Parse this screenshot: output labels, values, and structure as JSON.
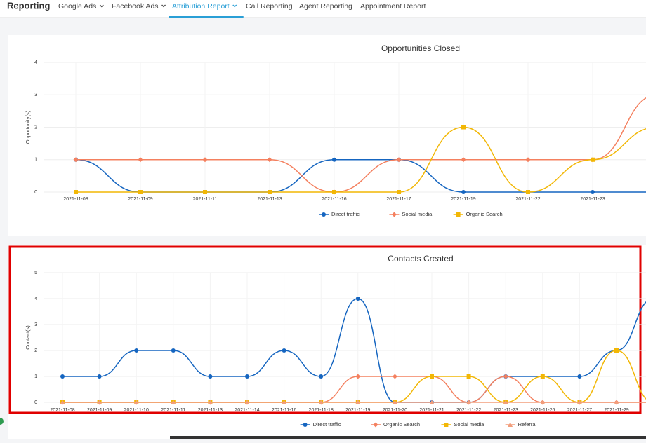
{
  "nav": {
    "brand": "Reporting",
    "tabs": [
      "Google Ads",
      "Facebook Ads",
      "Attribution Report",
      "Call Reporting",
      "Agent Reporting",
      "Appointment Report"
    ],
    "active": 2
  },
  "chart_data": [
    {
      "type": "line",
      "title": "Opportunities Closed",
      "y_label": "Opportunity(s)",
      "categories": [
        "2021-11-08",
        "2021-11-09",
        "2021-11-11",
        "2021-11-13",
        "2021-11-16",
        "2021-11-17",
        "2021-11-19",
        "2021-11-22",
        "2021-11-23",
        null
      ],
      "series": [
        {
          "name": "Direct traffic",
          "color": "#1565c0",
          "marker": "circle",
          "values": [
            1,
            0,
            0,
            0,
            1,
            1,
            0,
            0,
            0,
            0
          ]
        },
        {
          "name": "Social media",
          "color": "#f4805f",
          "marker": "diamond",
          "values": [
            1,
            1,
            1,
            1,
            0,
            1,
            1,
            1,
            1,
            3
          ]
        },
        {
          "name": "Organic Search",
          "color": "#f2b705",
          "marker": "square",
          "values": [
            0,
            0,
            0,
            0,
            0,
            0,
            2,
            0,
            1,
            2
          ]
        }
      ],
      "ylim": [
        0,
        4
      ],
      "yticks": [
        0,
        1,
        2,
        3,
        4
      ],
      "grid": true
    },
    {
      "type": "line",
      "title": "Contacts Created",
      "y_label": "Contact(s)",
      "categories": [
        "2021-11-08",
        "2021-11-09",
        "2021-11-10",
        "2021-11-11",
        "2021-11-13",
        "2021-11-14",
        "2021-11-16",
        "2021-11-18",
        "2021-11-19",
        "2021-11-20",
        "2021-11-21",
        "2021-11-22",
        "2021-11-23",
        "2021-11-26",
        "2021-11-27",
        "2021-11-29",
        null
      ],
      "series": [
        {
          "name": "Direct traffic",
          "color": "#1565c0",
          "marker": "circle",
          "values": [
            1,
            1,
            2,
            2,
            1,
            1,
            2,
            1,
            4,
            0,
            0,
            0,
            1,
            1,
            1,
            2,
            4
          ]
        },
        {
          "name": "Organic Search",
          "color": "#f4805f",
          "marker": "diamond",
          "values": [
            0,
            0,
            0,
            0,
            0,
            0,
            0,
            0,
            1,
            1,
            1,
            0,
            1,
            0,
            0,
            0,
            0
          ]
        },
        {
          "name": "Social media",
          "color": "#f2b705",
          "marker": "square",
          "values": [
            0,
            0,
            0,
            0,
            0,
            0,
            0,
            0,
            0,
            0,
            1,
            1,
            0,
            1,
            0,
            2,
            0
          ]
        },
        {
          "name": "Referral",
          "color": "#f29e7c",
          "marker": "triangle",
          "values": [
            0,
            0,
            0,
            0,
            0,
            0,
            0,
            0,
            0,
            0,
            0,
            0,
            0,
            0,
            0,
            0,
            0
          ]
        }
      ],
      "ylim": [
        0,
        5
      ],
      "yticks": [
        0,
        1,
        2,
        3,
        4,
        5
      ],
      "grid": true
    }
  ]
}
